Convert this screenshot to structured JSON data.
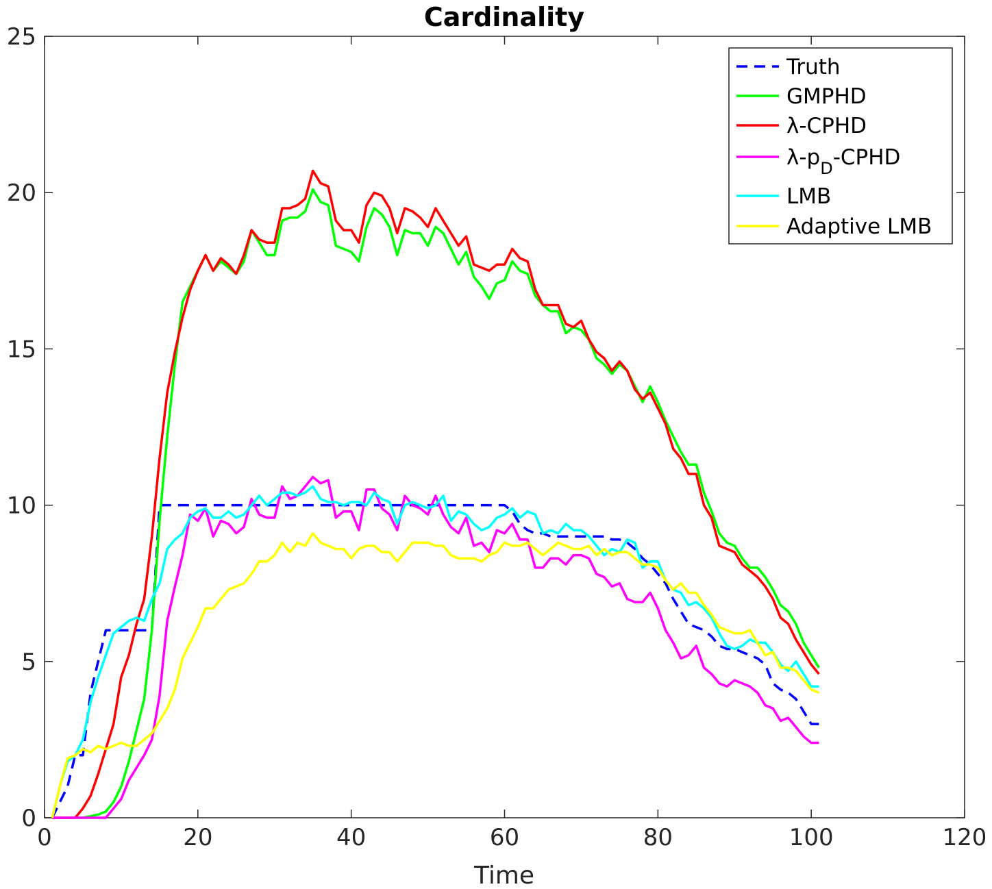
{
  "chart_data": {
    "type": "line",
    "title": "Cardinality",
    "xlabel": "Time",
    "ylabel": "",
    "xlim": [
      0,
      120
    ],
    "ylim": [
      0,
      25
    ],
    "xticks": [
      "0",
      "20",
      "40",
      "60",
      "80",
      "100",
      "120"
    ],
    "yticks": [
      "0",
      "5",
      "10",
      "15",
      "20",
      "25"
    ],
    "grid": false,
    "legend_position": "top-right",
    "series": [
      {
        "name": "Truth",
        "color": "#0000ff",
        "dash": true,
        "x": [
          1,
          2,
          3,
          4,
          5,
          6,
          7,
          8,
          9,
          10,
          11,
          12,
          13,
          14,
          15,
          16,
          17,
          18,
          19,
          20,
          21,
          22,
          23,
          24,
          25,
          26,
          27,
          28,
          29,
          30,
          31,
          32,
          33,
          34,
          35,
          36,
          37,
          38,
          39,
          40,
          41,
          42,
          43,
          44,
          45,
          46,
          47,
          48,
          49,
          50,
          51,
          52,
          53,
          54,
          55,
          56,
          57,
          58,
          59,
          60,
          61,
          62,
          63,
          64,
          65,
          66,
          67,
          68,
          69,
          70,
          71,
          72,
          73,
          74,
          75,
          76,
          77,
          78,
          79,
          80,
          81,
          82,
          83,
          84,
          85,
          86,
          87,
          88,
          89,
          90,
          91,
          92,
          93,
          94,
          95,
          96,
          97,
          98,
          99,
          100,
          101
        ],
        "y": [
          0,
          0.5,
          1,
          2,
          2,
          4,
          5,
          6,
          6,
          6,
          6,
          6,
          6,
          6,
          10,
          10,
          10,
          10,
          10,
          10,
          10,
          10,
          10,
          10,
          10,
          10,
          10,
          10,
          10,
          10,
          10,
          10,
          10,
          10,
          10,
          10,
          10,
          10,
          10,
          10,
          10,
          10,
          10,
          10,
          10,
          10,
          10,
          10,
          10,
          10,
          10,
          10,
          10,
          10,
          10,
          10,
          10,
          10,
          10,
          10,
          9.8,
          9.4,
          9.2,
          9.1,
          9.1,
          9.0,
          9.0,
          9.0,
          9.0,
          9.0,
          9.0,
          9.0,
          9.0,
          8.9,
          8.9,
          8.8,
          8.6,
          8.3,
          8.1,
          7.8,
          7.5,
          7.0,
          6.6,
          6.2,
          6.1,
          6.0,
          5.8,
          5.5,
          5.4,
          5.4,
          5.3,
          5.2,
          5.1,
          4.9,
          4.3,
          4.1,
          4.0,
          3.8,
          3.4,
          3.0,
          3.0
        ]
      },
      {
        "name": "GMPHD",
        "color": "#00ff00",
        "dash": false,
        "x": [
          1,
          2,
          3,
          4,
          5,
          6,
          7,
          8,
          9,
          10,
          11,
          12,
          13,
          14,
          15,
          16,
          17,
          18,
          19,
          20,
          21,
          22,
          23,
          24,
          25,
          26,
          27,
          28,
          29,
          30,
          31,
          32,
          33,
          34,
          35,
          36,
          37,
          38,
          39,
          40,
          41,
          42,
          43,
          44,
          45,
          46,
          47,
          48,
          49,
          50,
          51,
          52,
          53,
          54,
          55,
          56,
          57,
          58,
          59,
          60,
          61,
          62,
          63,
          64,
          65,
          66,
          67,
          68,
          69,
          70,
          71,
          72,
          73,
          74,
          75,
          76,
          77,
          78,
          79,
          80,
          81,
          82,
          83,
          84,
          85,
          86,
          87,
          88,
          89,
          90,
          91,
          92,
          93,
          94,
          95,
          96,
          97,
          98,
          99,
          100,
          101
        ],
        "y": [
          0,
          0,
          0,
          0,
          0,
          0.05,
          0.1,
          0.2,
          0.5,
          1.0,
          1.8,
          2.8,
          3.8,
          6.0,
          9.5,
          12.2,
          14.5,
          16.5,
          17.0,
          17.5,
          18.0,
          17.5,
          17.8,
          17.6,
          17.4,
          17.8,
          18.8,
          18.4,
          18.0,
          18.0,
          19.1,
          19.2,
          19.2,
          19.4,
          20.1,
          19.7,
          19.6,
          18.3,
          18.2,
          18.1,
          17.8,
          18.9,
          19.5,
          19.3,
          18.9,
          18.0,
          18.8,
          18.7,
          18.7,
          18.3,
          18.9,
          18.7,
          18.2,
          17.7,
          18.1,
          17.3,
          17.0,
          16.6,
          17.1,
          17.2,
          17.8,
          17.5,
          17.4,
          16.7,
          16.4,
          16.2,
          16.2,
          15.5,
          15.7,
          15.6,
          15.3,
          14.7,
          14.5,
          14.2,
          14.5,
          14.3,
          13.8,
          13.3,
          13.8,
          13.3,
          12.7,
          12.2,
          11.7,
          11.3,
          11.3,
          10.4,
          9.8,
          9.1,
          8.8,
          8.7,
          8.3,
          8.0,
          8.0,
          7.7,
          7.3,
          6.8,
          6.6,
          6.2,
          5.6,
          5.2,
          4.8
        ]
      },
      {
        "name": "λ-CPHD",
        "color": "#ff0000",
        "dash": false,
        "x": [
          1,
          2,
          3,
          4,
          5,
          6,
          7,
          8,
          9,
          10,
          11,
          12,
          13,
          14,
          15,
          16,
          17,
          18,
          19,
          20,
          21,
          22,
          23,
          24,
          25,
          26,
          27,
          28,
          29,
          30,
          31,
          32,
          33,
          34,
          35,
          36,
          37,
          38,
          39,
          40,
          41,
          42,
          43,
          44,
          45,
          46,
          47,
          48,
          49,
          50,
          51,
          52,
          53,
          54,
          55,
          56,
          57,
          58,
          59,
          60,
          61,
          62,
          63,
          64,
          65,
          66,
          67,
          68,
          69,
          70,
          71,
          72,
          73,
          74,
          75,
          76,
          77,
          78,
          79,
          80,
          81,
          82,
          83,
          84,
          85,
          86,
          87,
          88,
          89,
          90,
          91,
          92,
          93,
          94,
          95,
          96,
          97,
          98,
          99,
          100,
          101
        ],
        "y": [
          0,
          0,
          0,
          0,
          0.3,
          0.7,
          1.4,
          2.2,
          3.0,
          4.5,
          5.2,
          6.2,
          7.0,
          9.0,
          11.5,
          13.6,
          14.9,
          16.0,
          16.9,
          17.5,
          18.0,
          17.5,
          17.9,
          17.7,
          17.4,
          18.0,
          18.8,
          18.5,
          18.4,
          18.4,
          19.5,
          19.5,
          19.6,
          19.8,
          20.7,
          20.3,
          20.2,
          19.1,
          18.8,
          18.8,
          18.4,
          19.6,
          20.0,
          19.9,
          19.5,
          18.7,
          19.5,
          19.4,
          19.2,
          18.9,
          19.5,
          19.1,
          18.7,
          18.3,
          18.6,
          17.7,
          17.6,
          17.5,
          17.7,
          17.7,
          18.2,
          17.9,
          17.8,
          16.9,
          16.4,
          16.4,
          16.4,
          15.8,
          15.7,
          15.9,
          15.3,
          14.9,
          14.7,
          14.3,
          14.6,
          14.3,
          13.7,
          13.4,
          13.6,
          13.1,
          12.6,
          11.8,
          11.5,
          11.0,
          11.0,
          10.0,
          9.6,
          8.7,
          8.6,
          8.5,
          8.1,
          7.9,
          7.7,
          7.4,
          7.0,
          6.4,
          6.2,
          5.7,
          5.3,
          4.9,
          4.6
        ]
      },
      {
        "name": "λ-pD-CPHD",
        "color": "#ff00ff",
        "dash": false,
        "x": [
          1,
          2,
          3,
          4,
          5,
          6,
          7,
          8,
          9,
          10,
          11,
          12,
          13,
          14,
          15,
          16,
          17,
          18,
          19,
          20,
          21,
          22,
          23,
          24,
          25,
          26,
          27,
          28,
          29,
          30,
          31,
          32,
          33,
          34,
          35,
          36,
          37,
          38,
          39,
          40,
          41,
          42,
          43,
          44,
          45,
          46,
          47,
          48,
          49,
          50,
          51,
          52,
          53,
          54,
          55,
          56,
          57,
          58,
          59,
          60,
          61,
          62,
          63,
          64,
          65,
          66,
          67,
          68,
          69,
          70,
          71,
          72,
          73,
          74,
          75,
          76,
          77,
          78,
          79,
          80,
          81,
          82,
          83,
          84,
          85,
          86,
          87,
          88,
          89,
          90,
          91,
          92,
          93,
          94,
          95,
          96,
          97,
          98,
          99,
          100,
          101
        ],
        "y": [
          0,
          0,
          0,
          0,
          0,
          0,
          0,
          0,
          0.3,
          0.6,
          1.2,
          1.6,
          2.0,
          2.5,
          3.9,
          6.3,
          7.4,
          8.4,
          9.7,
          9.5,
          9.9,
          9.0,
          9.5,
          9.4,
          9.1,
          9.3,
          10.2,
          9.7,
          9.6,
          9.6,
          10.6,
          10.2,
          10.3,
          10.6,
          10.9,
          10.7,
          10.8,
          9.6,
          9.8,
          9.8,
          9.2,
          10.5,
          10.5,
          9.9,
          9.7,
          9.2,
          10.3,
          10.0,
          9.9,
          9.7,
          10.3,
          9.7,
          9.3,
          9.1,
          9.6,
          8.7,
          8.8,
          8.5,
          9.2,
          9.1,
          9.4,
          8.9,
          8.9,
          8.0,
          8.0,
          8.3,
          8.3,
          8.1,
          8.4,
          8.4,
          8.3,
          7.8,
          7.7,
          7.4,
          7.5,
          7.0,
          6.9,
          6.9,
          7.2,
          6.7,
          6.0,
          5.6,
          5.1,
          5.2,
          5.5,
          4.8,
          4.6,
          4.3,
          4.2,
          4.4,
          4.3,
          4.2,
          4.0,
          3.6,
          3.5,
          3.1,
          3.2,
          2.9,
          2.6,
          2.4,
          2.4
        ]
      },
      {
        "name": "LMB",
        "color": "#00ffff",
        "dash": false,
        "x": [
          1,
          2,
          3,
          4,
          5,
          6,
          7,
          8,
          9,
          10,
          11,
          12,
          13,
          14,
          15,
          16,
          17,
          18,
          19,
          20,
          21,
          22,
          23,
          24,
          25,
          26,
          27,
          28,
          29,
          30,
          31,
          32,
          33,
          34,
          35,
          36,
          37,
          38,
          39,
          40,
          41,
          42,
          43,
          44,
          45,
          46,
          47,
          48,
          49,
          50,
          51,
          52,
          53,
          54,
          55,
          56,
          57,
          58,
          59,
          60,
          61,
          62,
          63,
          64,
          65,
          66,
          67,
          68,
          69,
          70,
          71,
          72,
          73,
          74,
          75,
          76,
          77,
          78,
          79,
          80,
          81,
          82,
          83,
          84,
          85,
          86,
          87,
          88,
          89,
          90,
          91,
          92,
          93,
          94,
          95,
          96,
          97,
          98,
          99,
          100,
          101
        ],
        "y": [
          0,
          1.0,
          1.8,
          2.0,
          2.5,
          3.7,
          4.5,
          5.2,
          5.9,
          6.1,
          6.3,
          6.4,
          6.3,
          7.0,
          7.5,
          8.6,
          8.9,
          9.1,
          9.6,
          9.8,
          9.9,
          9.6,
          9.6,
          9.8,
          9.6,
          9.7,
          10.0,
          10.3,
          10.0,
          10.2,
          10.4,
          10.4,
          10.3,
          10.4,
          10.6,
          10.2,
          10.1,
          10.1,
          10.0,
          10.1,
          10.1,
          10.0,
          10.4,
          10.2,
          10.1,
          9.4,
          10.0,
          10.1,
          10.0,
          9.9,
          10.0,
          10.3,
          9.5,
          9.8,
          9.7,
          9.4,
          9.2,
          9.3,
          9.6,
          9.7,
          9.9,
          9.6,
          9.8,
          9.7,
          9.1,
          9.2,
          9.1,
          9.4,
          9.2,
          9.2,
          9.0,
          8.7,
          8.4,
          8.6,
          8.5,
          8.9,
          8.8,
          8.0,
          8.2,
          8.2,
          7.6,
          7.3,
          7.2,
          6.8,
          6.9,
          6.7,
          6.4,
          5.9,
          5.5,
          5.4,
          5.5,
          5.7,
          5.6,
          5.6,
          5.3,
          4.9,
          4.7,
          5.0,
          4.6,
          4.2,
          4.2
        ]
      },
      {
        "name": "Adaptive LMB",
        "color": "#ffff00",
        "dash": false,
        "x": [
          1,
          2,
          3,
          4,
          5,
          6,
          7,
          8,
          9,
          10,
          11,
          12,
          13,
          14,
          15,
          16,
          17,
          18,
          19,
          20,
          21,
          22,
          23,
          24,
          25,
          26,
          27,
          28,
          29,
          30,
          31,
          32,
          33,
          34,
          35,
          36,
          37,
          38,
          39,
          40,
          41,
          42,
          43,
          44,
          45,
          46,
          47,
          48,
          49,
          50,
          51,
          52,
          53,
          54,
          55,
          56,
          57,
          58,
          59,
          60,
          61,
          62,
          63,
          64,
          65,
          66,
          67,
          68,
          69,
          70,
          71,
          72,
          73,
          74,
          75,
          76,
          77,
          78,
          79,
          80,
          81,
          82,
          83,
          84,
          85,
          86,
          87,
          88,
          89,
          90,
          91,
          92,
          93,
          94,
          95,
          96,
          97,
          98,
          99,
          100,
          101
        ],
        "y": [
          0,
          1.0,
          1.9,
          2.0,
          2.2,
          2.1,
          2.3,
          2.2,
          2.3,
          2.4,
          2.3,
          2.3,
          2.5,
          2.7,
          3.1,
          3.5,
          4.1,
          5.1,
          5.6,
          6.1,
          6.7,
          6.7,
          7.0,
          7.3,
          7.4,
          7.5,
          7.8,
          8.2,
          8.2,
          8.4,
          8.8,
          8.5,
          8.8,
          8.7,
          9.1,
          8.8,
          8.7,
          8.6,
          8.6,
          8.3,
          8.6,
          8.7,
          8.7,
          8.5,
          8.5,
          8.2,
          8.5,
          8.8,
          8.8,
          8.8,
          8.7,
          8.7,
          8.4,
          8.3,
          8.3,
          8.3,
          8.2,
          8.4,
          8.5,
          8.8,
          8.7,
          8.7,
          8.8,
          8.6,
          8.4,
          8.6,
          8.8,
          8.7,
          8.6,
          8.6,
          8.7,
          8.4,
          8.6,
          8.4,
          8.5,
          8.5,
          8.3,
          8.1,
          8.1,
          8.0,
          7.6,
          7.3,
          7.5,
          7.2,
          7.2,
          6.8,
          6.5,
          6.1,
          6.0,
          5.9,
          5.9,
          6.0,
          5.6,
          5.2,
          5.3,
          4.8,
          4.8,
          4.7,
          4.4,
          4.1,
          4.0
        ]
      }
    ]
  }
}
